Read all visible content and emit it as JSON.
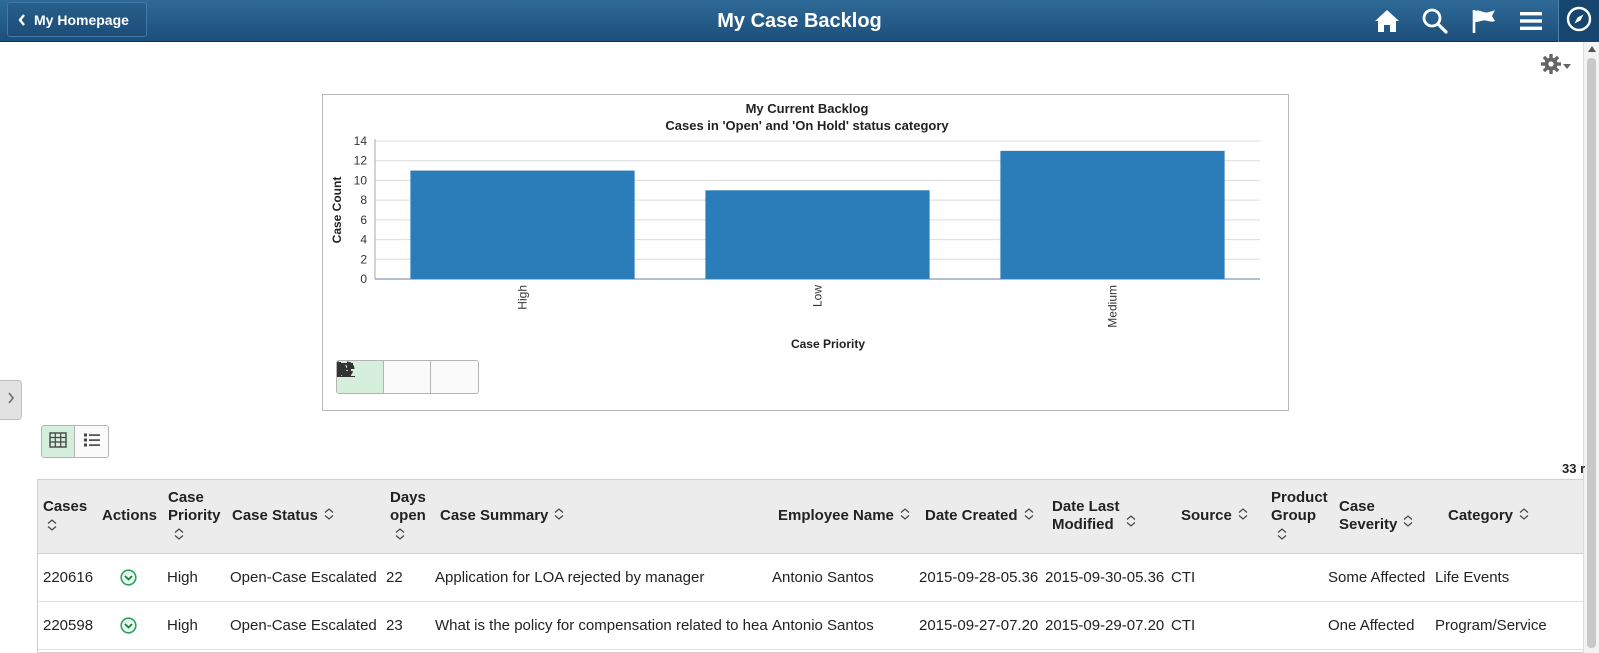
{
  "header": {
    "back_label": "My Homepage",
    "title": "My Case Backlog",
    "icons": [
      "home-icon",
      "search-icon",
      "flag-icon",
      "menu-icon",
      "navigator-icon"
    ]
  },
  "toolbar": {
    "row_count": "33 r"
  },
  "colors": {
    "header": "#1c4f7a",
    "bar": "#2a7db8",
    "active_toggle": "#d5efdc",
    "action_icon": "#2aa35a"
  },
  "chart_data": {
    "type": "bar",
    "title": "My Current Backlog",
    "subtitle": "Cases in 'Open' and 'On Hold' status category",
    "xlabel": "Case Priority",
    "ylabel": "Case Count",
    "categories": [
      "High",
      "Low",
      "Medium"
    ],
    "values": [
      11,
      9,
      13
    ],
    "ylim": [
      0,
      14
    ],
    "yticks": [
      "0",
      "2",
      "4",
      "6",
      "8",
      "10",
      "12",
      "14"
    ],
    "grid": true
  },
  "table": {
    "columns": [
      {
        "label": "Cases"
      },
      {
        "label": "Actions"
      },
      {
        "label": "Case\nPriority"
      },
      {
        "label": "Case Status"
      },
      {
        "label": "Days\nopen"
      },
      {
        "label": "Case Summary"
      },
      {
        "label": "Employee Name"
      },
      {
        "label": "Date Created"
      },
      {
        "label": "Date Last\nModified"
      },
      {
        "label": "Source"
      },
      {
        "label": "Product\nGroup"
      },
      {
        "label": "Case\nSeverity"
      },
      {
        "label": "Category"
      }
    ],
    "rows": [
      {
        "case": "220616",
        "priority": "High",
        "status": "Open-Case Escalated",
        "days": "22",
        "summary": "Application for LOA rejected by manager",
        "employee": "Antonio Santos",
        "created": "2015-09-28-05.36",
        "modified": "2015-09-30-05.36",
        "source": "CTI",
        "product": "",
        "severity": "Some Affected",
        "category": "Life Events"
      },
      {
        "case": "220598",
        "priority": "High",
        "status": "Open-Case Escalated",
        "days": "23",
        "summary": "What is the policy for compensation related to hea",
        "employee": "Antonio Santos",
        "created": "2015-09-27-07.20",
        "modified": "2015-09-29-07.20",
        "source": "CTI",
        "product": "",
        "severity": "One Affected",
        "category": "Program/Service"
      }
    ]
  }
}
